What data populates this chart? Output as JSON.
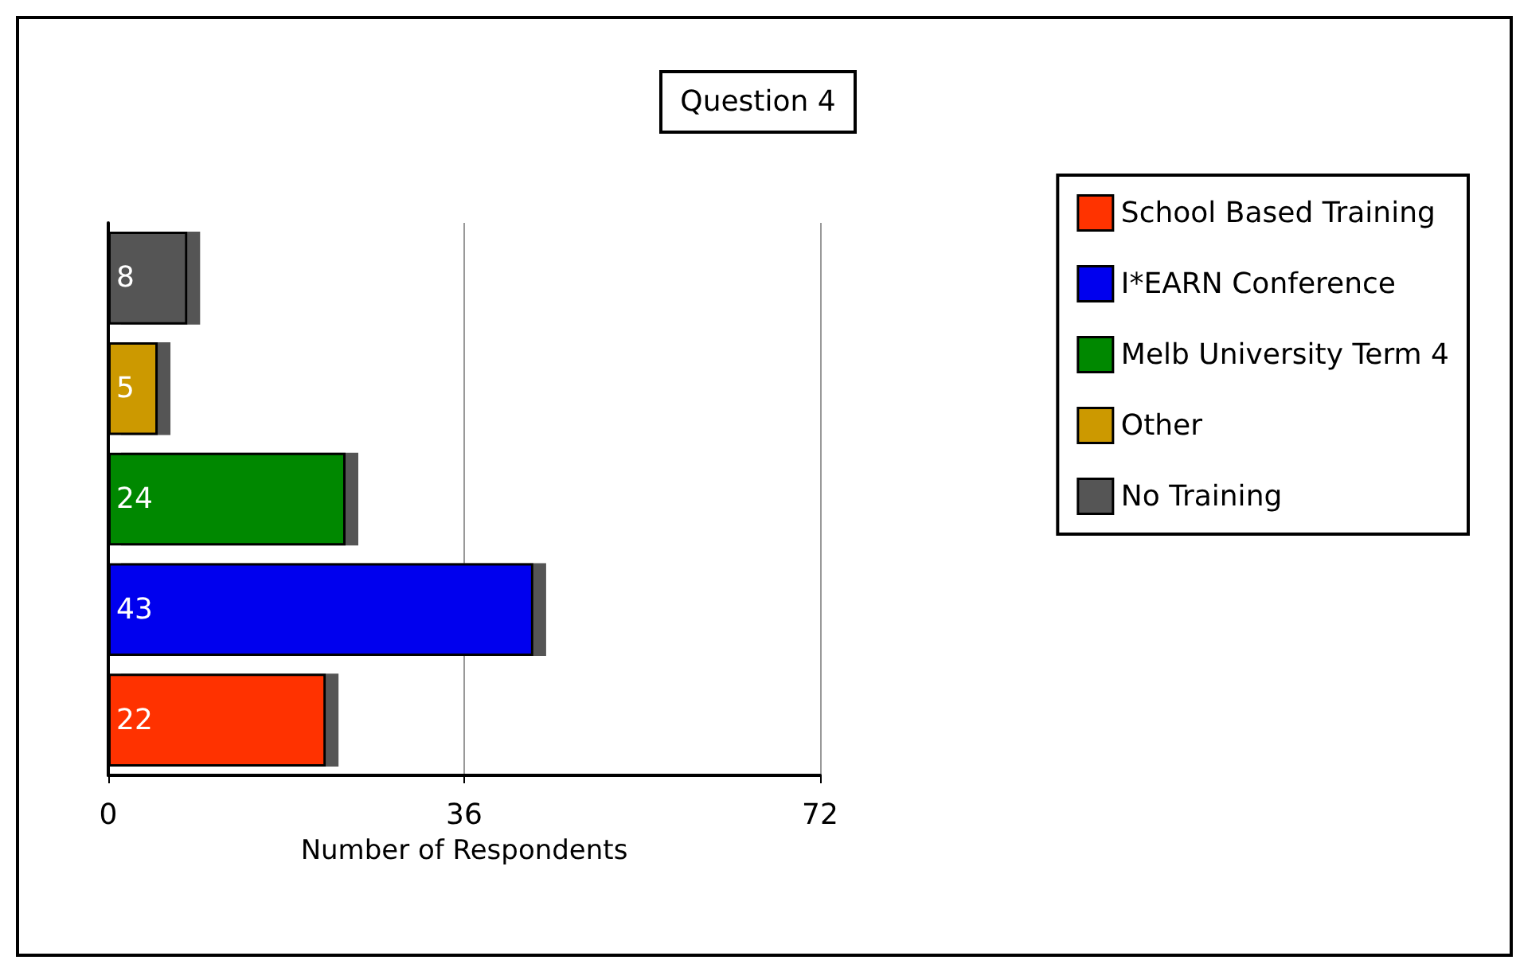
{
  "chart_data": {
    "type": "bar",
    "orientation": "horizontal",
    "stacked": true,
    "title": "Question 4",
    "xlabel": "Number of Respondents",
    "categories": [
      null,
      null,
      null,
      null,
      null
    ],
    "series": [
      {
        "name": "School Based Training",
        "color": "#ff3300",
        "values": [
          null,
          null,
          null,
          null,
          22
        ]
      },
      {
        "name": "I*EARN Conference",
        "color": "#0000ee",
        "values": [
          null,
          null,
          null,
          43,
          null
        ]
      },
      {
        "name": "Melb University Term 4",
        "color": "#008800",
        "values": [
          null,
          null,
          24,
          null,
          null
        ]
      },
      {
        "name": "Other",
        "color": "#cc9900",
        "values": [
          null,
          5,
          null,
          null,
          null
        ]
      },
      {
        "name": "No Training",
        "color": "#555555",
        "values": [
          8,
          null,
          null,
          null,
          null
        ]
      }
    ],
    "xlim": [
      0,
      72
    ],
    "xticks": [
      0,
      36,
      72
    ],
    "grid": "x",
    "legend": "top right",
    "data_labels": true
  }
}
